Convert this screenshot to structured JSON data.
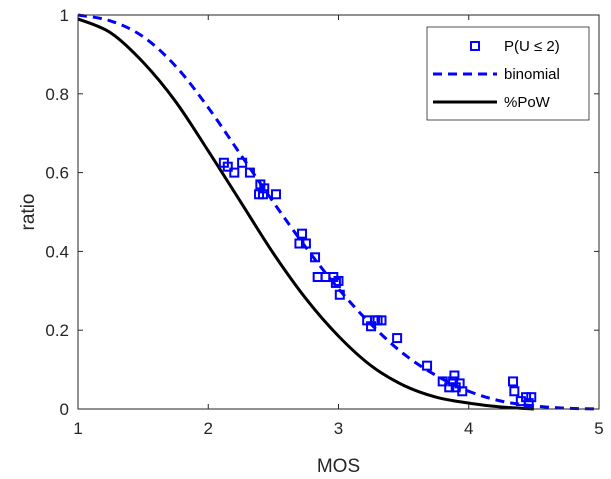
{
  "chart_data": {
    "type": "scatter",
    "xlabel": "MOS",
    "ylabel": "ratio",
    "xlim": [
      1,
      5
    ],
    "ylim": [
      0,
      1
    ],
    "xticks": [
      "1",
      "2",
      "3",
      "4",
      "5"
    ],
    "yticks": [
      "0",
      "0.2",
      "0.4",
      "0.6",
      "0.8",
      "1"
    ],
    "grid": false,
    "legend_position": "top-right",
    "series": [
      {
        "name": "P(U ≤ 2)",
        "kind": "scatter",
        "marker": "square",
        "color": "#0000ff",
        "points": [
          [
            2.12,
            0.625
          ],
          [
            2.15,
            0.615
          ],
          [
            2.2,
            0.6
          ],
          [
            2.26,
            0.625
          ],
          [
            2.32,
            0.6
          ],
          [
            2.39,
            0.545
          ],
          [
            2.4,
            0.57
          ],
          [
            2.42,
            0.545
          ],
          [
            2.43,
            0.56
          ],
          [
            2.52,
            0.545
          ],
          [
            2.7,
            0.42
          ],
          [
            2.72,
            0.445
          ],
          [
            2.75,
            0.42
          ],
          [
            2.82,
            0.385
          ],
          [
            2.84,
            0.335
          ],
          [
            2.9,
            0.335
          ],
          [
            2.96,
            0.335
          ],
          [
            2.98,
            0.32
          ],
          [
            3.0,
            0.325
          ],
          [
            3.01,
            0.29
          ],
          [
            3.22,
            0.225
          ],
          [
            3.25,
            0.21
          ],
          [
            3.28,
            0.225
          ],
          [
            3.3,
            0.225
          ],
          [
            3.33,
            0.225
          ],
          [
            3.45,
            0.18
          ],
          [
            3.68,
            0.11
          ],
          [
            3.8,
            0.07
          ],
          [
            3.85,
            0.055
          ],
          [
            3.88,
            0.07
          ],
          [
            3.89,
            0.085
          ],
          [
            3.9,
            0.055
          ],
          [
            3.93,
            0.065
          ],
          [
            3.95,
            0.045
          ],
          [
            4.34,
            0.07
          ],
          [
            4.35,
            0.045
          ],
          [
            4.4,
            0.02
          ],
          [
            4.44,
            0.03
          ],
          [
            4.46,
            0.015
          ],
          [
            4.48,
            0.03
          ]
        ]
      },
      {
        "name": "binomial",
        "kind": "line",
        "dash": "dashed",
        "color": "#0000ff",
        "points": [
          [
            1.0,
            1.0
          ],
          [
            1.25,
            0.985
          ],
          [
            1.5,
            0.945
          ],
          [
            1.75,
            0.87
          ],
          [
            2.0,
            0.765
          ],
          [
            2.25,
            0.645
          ],
          [
            2.5,
            0.525
          ],
          [
            2.75,
            0.41
          ],
          [
            3.0,
            0.305
          ],
          [
            3.25,
            0.215
          ],
          [
            3.5,
            0.14
          ],
          [
            3.75,
            0.085
          ],
          [
            4.0,
            0.045
          ],
          [
            4.25,
            0.02
          ],
          [
            4.5,
            0.008
          ],
          [
            4.75,
            0.002
          ],
          [
            5.0,
            0.0
          ]
        ]
      },
      {
        "name": "%PoW",
        "kind": "line",
        "dash": "solid",
        "color": "#000000",
        "points": [
          [
            1.0,
            0.99
          ],
          [
            1.25,
            0.955
          ],
          [
            1.5,
            0.88
          ],
          [
            1.75,
            0.78
          ],
          [
            2.0,
            0.655
          ],
          [
            2.25,
            0.525
          ],
          [
            2.5,
            0.395
          ],
          [
            2.75,
            0.28
          ],
          [
            3.0,
            0.185
          ],
          [
            3.25,
            0.11
          ],
          [
            3.5,
            0.06
          ],
          [
            3.75,
            0.03
          ],
          [
            4.0,
            0.015
          ],
          [
            4.25,
            0.005
          ],
          [
            4.5,
            0.0
          ]
        ]
      }
    ]
  }
}
